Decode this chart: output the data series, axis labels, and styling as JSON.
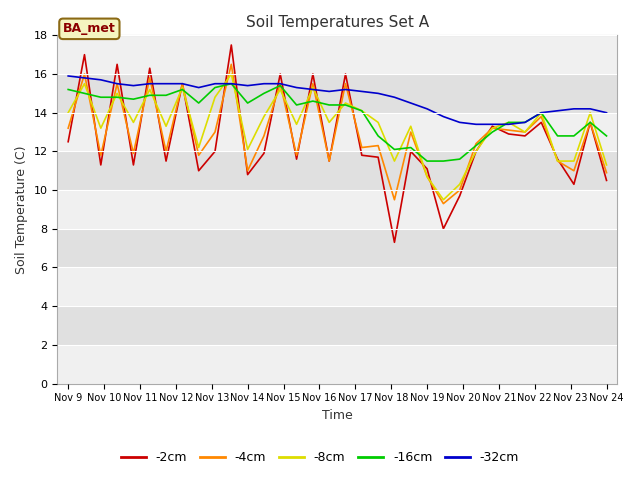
{
  "title": "Soil Temperatures Set A",
  "xlabel": "Time",
  "ylabel": "Soil Temperature (C)",
  "ylim": [
    0,
    18
  ],
  "yticks": [
    0,
    2,
    4,
    6,
    8,
    10,
    12,
    14,
    16,
    18
  ],
  "x_labels": [
    "Nov 9",
    "Nov 10",
    "Nov 11",
    "Nov 12",
    "Nov 13",
    "Nov 14",
    "Nov 15",
    "Nov 16",
    "Nov 17",
    "Nov 18",
    "Nov 19",
    "Nov 20",
    "Nov 21",
    "Nov 22",
    "Nov 23",
    "Nov 24"
  ],
  "annotation_label": "BA_met",
  "fig_bg_color": "#ffffff",
  "plot_bg_color": "#e8e8e8",
  "series": {
    "-2cm": {
      "color": "#cc0000",
      "data": [
        12.5,
        17.0,
        11.3,
        16.5,
        11.3,
        16.3,
        11.5,
        15.5,
        11.0,
        12.0,
        17.5,
        10.8,
        11.9,
        16.0,
        11.6,
        16.0,
        11.5,
        16.0,
        11.8,
        11.7,
        7.3,
        12.0,
        11.1,
        8.0,
        9.7,
        12.0,
        13.3,
        12.9,
        12.8,
        13.5,
        11.6,
        10.3,
        13.5,
        10.5
      ]
    },
    "-4cm": {
      "color": "#ff8800",
      "data": [
        13.2,
        16.0,
        11.8,
        15.5,
        11.9,
        15.8,
        12.0,
        15.5,
        11.8,
        13.0,
        16.5,
        11.0,
        12.8,
        15.5,
        11.8,
        15.5,
        11.5,
        15.5,
        12.2,
        12.3,
        9.5,
        13.0,
        10.7,
        9.3,
        10.0,
        12.4,
        13.2,
        13.1,
        13.0,
        13.8,
        11.5,
        11.0,
        13.5,
        10.9
      ]
    },
    "-8cm": {
      "color": "#dddd00",
      "data": [
        14.0,
        15.5,
        13.2,
        15.0,
        13.5,
        15.2,
        13.3,
        15.3,
        12.2,
        14.8,
        16.0,
        12.1,
        13.8,
        15.2,
        13.4,
        15.3,
        13.5,
        14.5,
        14.1,
        13.5,
        11.5,
        13.3,
        10.7,
        9.5,
        10.3,
        12.0,
        13.2,
        13.5,
        13.0,
        14.0,
        11.5,
        11.5,
        14.0,
        11.3
      ]
    },
    "-16cm": {
      "color": "#00cc00",
      "data": [
        15.2,
        15.0,
        14.8,
        14.8,
        14.7,
        14.9,
        14.9,
        15.2,
        14.5,
        15.3,
        15.5,
        14.5,
        15.0,
        15.4,
        14.4,
        14.6,
        14.4,
        14.4,
        14.1,
        12.8,
        12.1,
        12.2,
        11.5,
        11.5,
        11.6,
        12.3,
        13.0,
        13.5,
        13.5,
        14.0,
        12.8,
        12.8,
        13.5,
        12.8
      ]
    },
    "-32cm": {
      "color": "#0000cc",
      "data": [
        15.9,
        15.8,
        15.7,
        15.5,
        15.4,
        15.5,
        15.5,
        15.5,
        15.3,
        15.5,
        15.5,
        15.4,
        15.5,
        15.5,
        15.3,
        15.2,
        15.1,
        15.2,
        15.1,
        15.0,
        14.8,
        14.5,
        14.2,
        13.8,
        13.5,
        13.4,
        13.4,
        13.4,
        13.5,
        14.0,
        14.1,
        14.2,
        14.2,
        14.0
      ]
    }
  },
  "band_colors": [
    "#f0f0f0",
    "#e0e0e0"
  ],
  "grid_color": "#ffffff"
}
